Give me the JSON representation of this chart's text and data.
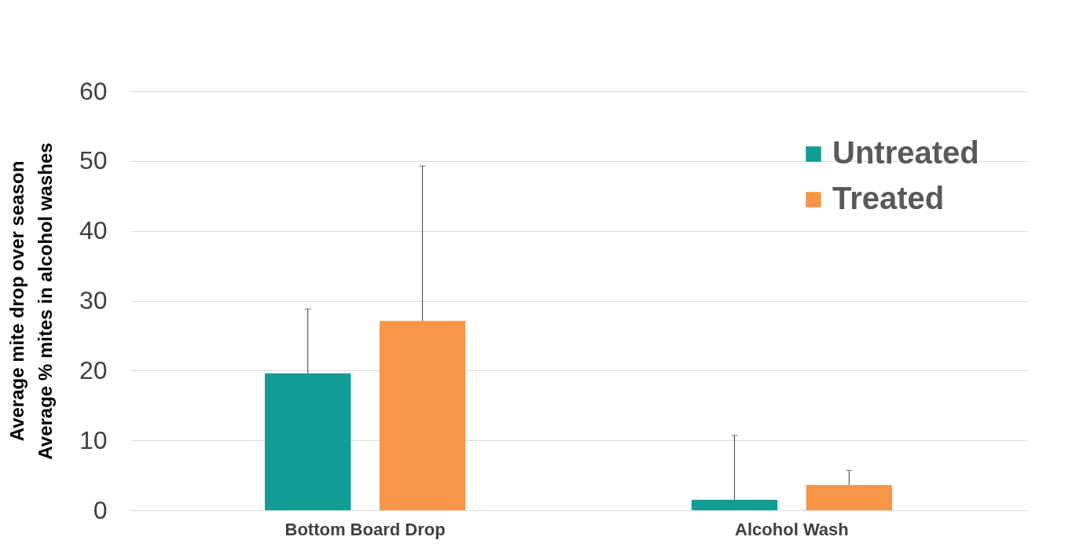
{
  "chart_data": {
    "type": "bar",
    "ylabel": "Average mite drop over season\nAverage % mites in alcohol washes",
    "categories": [
      "Bottom Board Drop",
      "Alcohol Wash"
    ],
    "series": [
      {
        "name": "Untreated",
        "color": "#129c96",
        "values": [
          19.6,
          1.5
        ],
        "errors": [
          [
            19.6,
            28.8
          ],
          [
            1.5,
            10.7
          ]
        ]
      },
      {
        "name": "Treated",
        "color": "#f79646",
        "values": [
          27.1,
          3.6
        ],
        "errors": [
          [
            27.1,
            49.3
          ],
          [
            3.6,
            5.7
          ]
        ]
      }
    ],
    "ylim": [
      0,
      60
    ],
    "yticks": [
      0,
      10,
      20,
      30,
      40,
      50,
      60
    ],
    "grid": "y",
    "legend": "top right"
  }
}
